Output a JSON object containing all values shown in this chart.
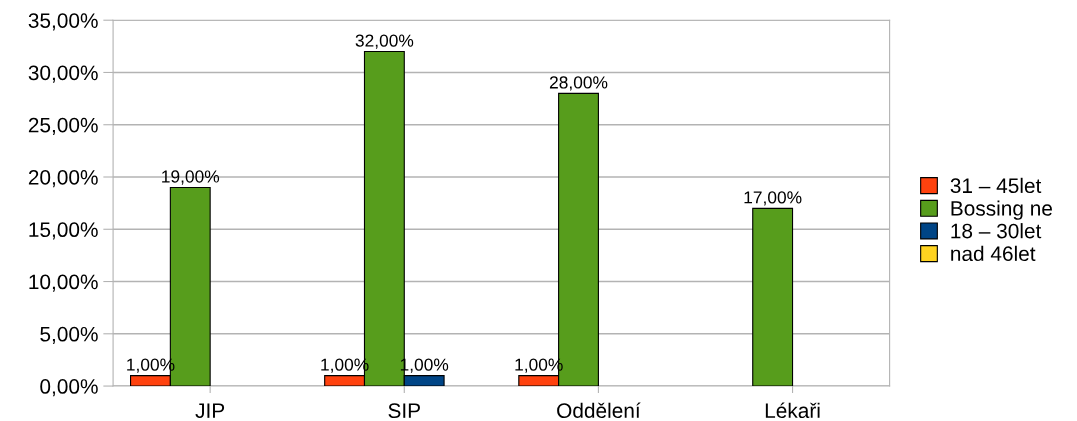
{
  "chart_data": {
    "type": "bar",
    "categories": [
      "JIP",
      "SIP",
      "Oddělení",
      "Lékaři"
    ],
    "series": [
      {
        "name": "31 – 45let",
        "color": "#ff420e",
        "values": [
          1,
          1,
          1,
          null
        ],
        "value_labels": [
          "1,00%",
          "1,00%",
          "1,00%",
          null
        ]
      },
      {
        "name": "Bossing ne",
        "color": "#579d1c",
        "values": [
          19,
          32,
          28,
          17
        ],
        "value_labels": [
          "19,00%",
          "32,00%",
          "28,00%",
          "17,00%"
        ]
      },
      {
        "name": "18 – 30let",
        "color": "#004586",
        "values": [
          null,
          1,
          null,
          null
        ],
        "value_labels": [
          null,
          "1,00%",
          null,
          null
        ]
      },
      {
        "name": "nad 46let",
        "color": "#ffd320",
        "values": [
          null,
          null,
          null,
          null
        ],
        "value_labels": [
          null,
          null,
          null,
          null
        ]
      }
    ],
    "ylim": [
      0,
      35
    ],
    "yticks": [
      {
        "value": 0,
        "label": "0,00%"
      },
      {
        "value": 5,
        "label": "5,00%"
      },
      {
        "value": 10,
        "label": "10,00%"
      },
      {
        "value": 15,
        "label": "15,00%"
      },
      {
        "value": 20,
        "label": "20,00%"
      },
      {
        "value": 25,
        "label": "25,00%"
      },
      {
        "value": 30,
        "label": "30,00%"
      },
      {
        "value": 35,
        "label": "35,00%"
      }
    ],
    "grid": "y",
    "legend": "right"
  }
}
